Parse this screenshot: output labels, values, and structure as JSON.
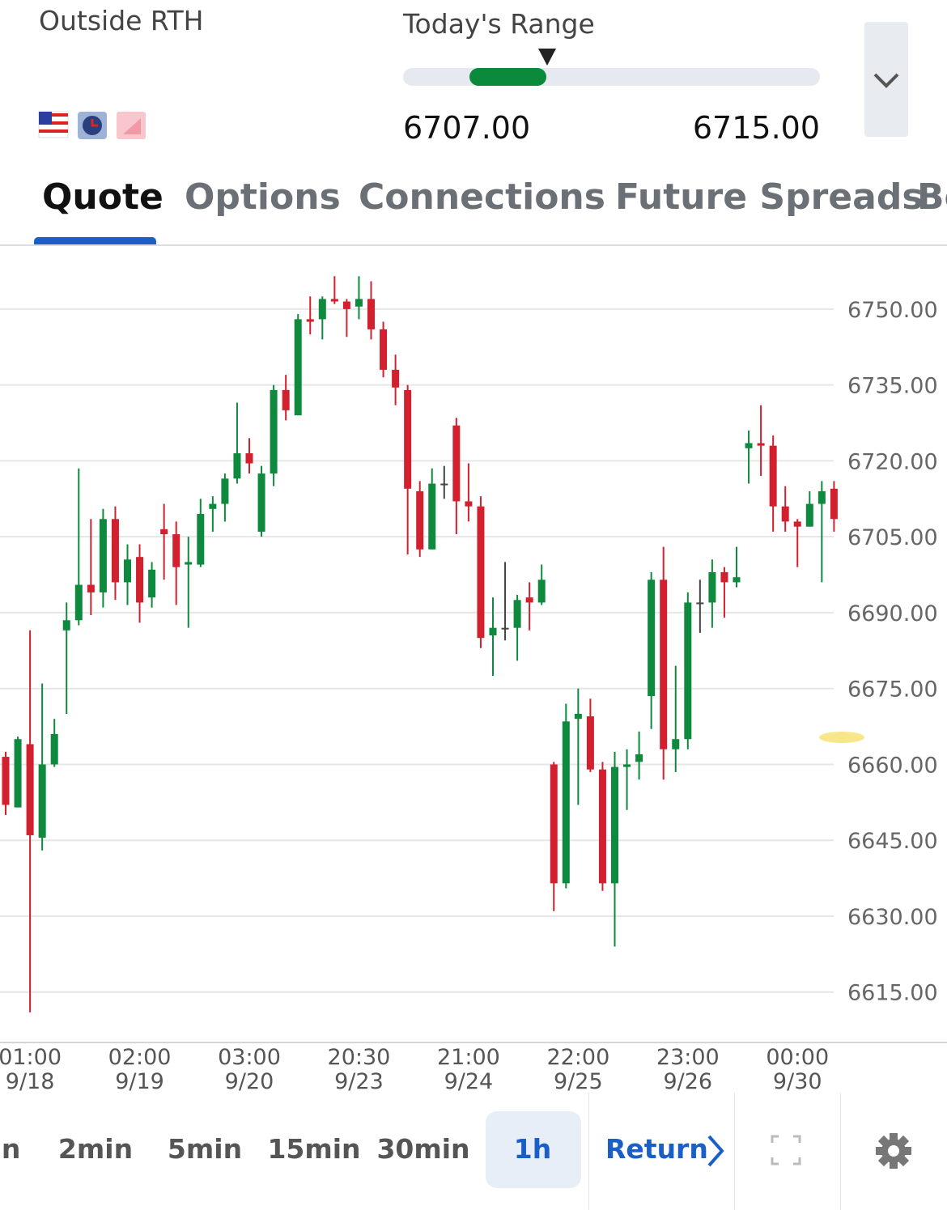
{
  "header": {
    "label": "Outside RTH",
    "range_title": "Today's Range",
    "range_low": "6707.00",
    "range_high": "6715.00"
  },
  "tabs": {
    "items": [
      "Quote",
      "Options",
      "Connections",
      "Future Spreads",
      "Be"
    ],
    "selected": 0
  },
  "bottom": {
    "intervals": [
      "in",
      "2min",
      "5min",
      "15min",
      "30min",
      "1h"
    ],
    "selected": 5,
    "return": "Return"
  },
  "chart_data": {
    "type": "candlestick",
    "up_color": "#0d8a3e",
    "down_color": "#d3202f",
    "flat_color": "#444444",
    "categories": [
      null,
      null,
      "01:00\n9/18",
      null,
      null,
      null,
      null,
      null,
      null,
      null,
      null,
      "02:00\n9/19",
      null,
      null,
      null,
      null,
      null,
      null,
      null,
      null,
      "03:00\n9/20",
      null,
      null,
      null,
      null,
      null,
      null,
      null,
      null,
      "20:30\n9/23",
      null,
      null,
      null,
      null,
      null,
      null,
      null,
      null,
      "21:00\n9/24",
      null,
      null,
      null,
      null,
      null,
      null,
      null,
      null,
      "22:00\n9/25",
      null,
      null,
      null,
      null,
      null,
      null,
      null,
      null,
      "23:00\n9/26",
      null,
      null,
      null,
      null,
      null,
      null,
      null,
      null,
      "00:00\n9/30",
      null,
      null,
      null
    ],
    "open": [
      6661.5,
      6651.5,
      6664,
      6645.5,
      6660,
      6686.5,
      6688.5,
      6695.5,
      6694,
      6708.5,
      6696,
      6701,
      6693,
      6706.5,
      6705.5,
      6699.5,
      6699.5,
      6710.5,
      6711.5,
      6716.5,
      6721.5,
      6706,
      6717.5,
      6734,
      6729,
      6748,
      6748,
      6752,
      6751.5,
      6750.5,
      6752,
      6746,
      6738,
      6734,
      6714,
      6702.5,
      6715.5,
      6727,
      6712,
      6711,
      6685.5,
      6687,
      6687,
      6693,
      6692,
      6660,
      6636.5,
      6669,
      6669.5,
      6659,
      6636.5,
      6659.5,
      6660.5,
      6673.5,
      6696.5,
      6663,
      6665,
      6692,
      6692,
      6698,
      6696,
      6722.5,
      6723.5,
      6723,
      6711,
      6708,
      6707,
      6711.5,
      6714.5
    ],
    "high": [
      6662.5,
      6665.5,
      6686.5,
      6676,
      6669,
      6692,
      6718.5,
      6708.5,
      6710.5,
      6711,
      6703.5,
      6703.5,
      6700,
      6711.5,
      6708,
      6705,
      6712.5,
      6713,
      6717.5,
      6731.5,
      6724.5,
      6719,
      6735,
      6737,
      6749,
      6752.5,
      6752.5,
      6756.5,
      6752,
      6756.5,
      6755.5,
      6747.5,
      6741,
      6735,
      6716,
      6718.5,
      6719,
      6728.5,
      6719.5,
      6713,
      6693,
      6700,
      6693.5,
      6696,
      6699.5,
      6660.5,
      6672,
      6675,
      6673,
      6660.5,
      6662.5,
      6663,
      6666.5,
      6698,
      6703,
      6679.5,
      6694,
      6696.5,
      6700.5,
      6699,
      6703,
      6726,
      6731,
      6725,
      6715,
      6708.5,
      6714,
      6716,
      6716
    ],
    "low": [
      6650,
      6651.5,
      6611,
      6643,
      6659.5,
      6670,
      6687.5,
      6689.5,
      6691,
      6692.5,
      6691.5,
      6688,
      6691,
      6696.5,
      6691.5,
      6687,
      6699,
      6706,
      6708,
      6715.5,
      6717.5,
      6705,
      6715,
      6728,
      6729,
      6745,
      6744,
      6751,
      6744.5,
      6748,
      6744,
      6736.5,
      6731,
      6701.5,
      6701,
      6702.5,
      6712.5,
      6705.5,
      6708,
      6683,
      6677.5,
      6684.5,
      6680.5,
      6686.5,
      6691.5,
      6631,
      6635.5,
      6652,
      6658.5,
      6635,
      6624,
      6651,
      6657,
      6667,
      6657,
      6658.5,
      6663,
      6686,
      6687,
      6689,
      6695,
      6715.5,
      6717,
      6706,
      6706,
      6699,
      6707,
      6696,
      6706
    ],
    "close": [
      6652,
      6665,
      6646,
      6660,
      6666,
      6688.5,
      6695.5,
      6694,
      6708.5,
      6696,
      6700.5,
      6692,
      6698.5,
      6705.5,
      6699,
      6700,
      6709.5,
      6711.5,
      6716.5,
      6721.5,
      6719.5,
      6717.5,
      6734,
      6730,
      6748,
      6747.5,
      6752,
      6751.5,
      6750,
      6752,
      6746,
      6738,
      6734.5,
      6714.5,
      6702.5,
      6715.5,
      6715.5,
      6712,
      6711,
      6685,
      6687,
      6687,
      6692.5,
      6692,
      6696.5,
      6636.5,
      6668.5,
      6670,
      6659,
      6636.5,
      6659.5,
      6660,
      6662,
      6696.5,
      6663,
      6665,
      6692,
      6692,
      6698,
      6696,
      6697,
      6723.5,
      6723,
      6711,
      6708,
      6707,
      6711.5,
      6714,
      6708.5
    ],
    "ylim": [
      6605.2,
      6762.3
    ],
    "yticks": [
      {
        "value": 6615,
        "label": "6615.00"
      },
      {
        "value": 6630,
        "label": "6630.00"
      },
      {
        "value": 6645,
        "label": "6645.00"
      },
      {
        "value": 6660,
        "label": "6660.00"
      },
      {
        "value": 6675,
        "label": "6675.00"
      },
      {
        "value": 6690,
        "label": "6690.00"
      },
      {
        "value": 6705,
        "label": "6705.00"
      },
      {
        "value": 6720,
        "label": "6720.00"
      },
      {
        "value": 6735,
        "label": "6735.00"
      },
      {
        "value": 6750,
        "label": "6750.00"
      }
    ],
    "grid": true
  }
}
